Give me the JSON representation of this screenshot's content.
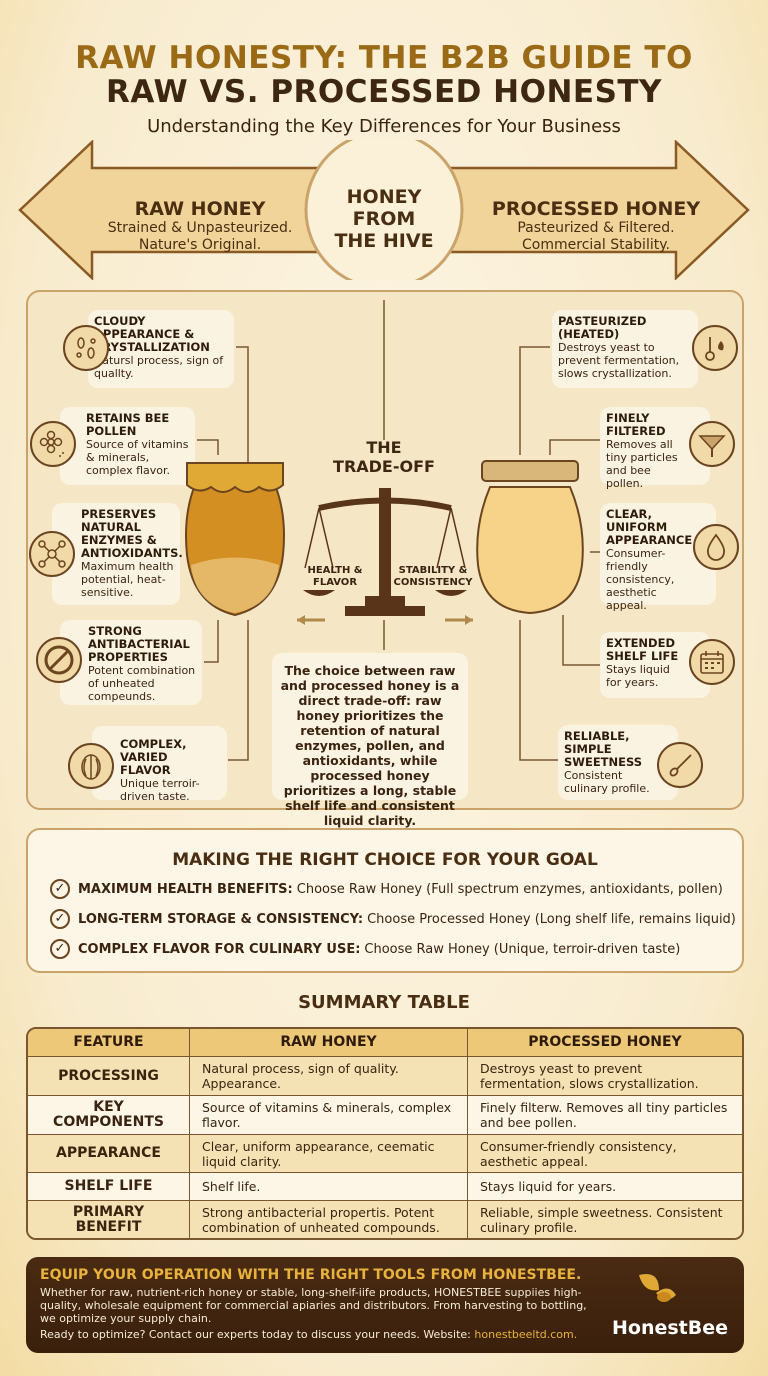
{
  "header": {
    "title_line1": "RAW HONESTY: THE B2B GUIDE TO",
    "title_line2": "RAW VS. PROCESSED HONESTY",
    "subtitle": "Understanding the Key Differences for Your Business"
  },
  "banner": {
    "raw": {
      "title": "RAW HONEY",
      "line1": "Strained & Unpasteurized.",
      "line2": "Nature's Original."
    },
    "center": {
      "line1": "HONEY",
      "line2": "FROM",
      "line3": "THE HIVE"
    },
    "processed": {
      "title": "PROCESSED HONEY",
      "line1": "Pasteurized & Filtered.",
      "line2": "Commercial Stability."
    }
  },
  "raw_features": [
    {
      "icon": "crystals-icon",
      "title": "CLOUDY APPEARANCE & CRYSTALLIZATION",
      "desc": "Natursl process, sign of quallty."
    },
    {
      "icon": "flower-pollen-icon",
      "title": "RETAINS BEE POLLEN",
      "desc": "Source of vitamins & minerals, complex flavor."
    },
    {
      "icon": "molecule-icon",
      "title": "PRESERVES NATURAL ENZYMES & ANTIOXIDANTS.",
      "desc": "Maximum health potential, heat-sensitive."
    },
    {
      "icon": "no-bacteria-icon",
      "title": "STRONG ANTIBACTERIAL PROPERTIES",
      "desc": "Potent combination of unheated compeunds."
    },
    {
      "icon": "cocoa-bean-icon",
      "title": "COMPLEX, VARIED FLAVOR",
      "desc": "Unique terroir-driven taste."
    }
  ],
  "processed_features": [
    {
      "icon": "thermometer-flame-icon",
      "title": "PASTEURIZED (HEATED)",
      "desc": "Destroys yeast to prevent fermentation, slows crystallization."
    },
    {
      "icon": "strainer-icon",
      "title": "FINELY FILTERED",
      "desc": "Removes all tiny particles and bee pollen."
    },
    {
      "icon": "droplet-icon",
      "title": "CLEAR, UNIFORM APPEARANCE",
      "desc": "Consumer-friendly consistency, aesthetic appeal."
    },
    {
      "icon": "calendar-icon",
      "title": "EXTENDED SHELF LIFE",
      "desc": "Stays liquid for years."
    },
    {
      "icon": "spoon-icon",
      "title": "RELIABLE, SIMPLE SWEETNESS",
      "desc": "Consistent culinary profile."
    }
  ],
  "tradeoff": {
    "title_line1": "THE",
    "title_line2": "TRADE-OFF",
    "left_pan": "HEALTH & FLAVOR",
    "right_pan": "STABILITY & CONSISTENCY",
    "quote": "The choice between raw and processed honey is a direct trade-off: raw honey prioritizes the retention of natural enzymes, pollen, and antioxidants, while processed honey prioritizes a long, stable shelf life and consistent liquid clarity."
  },
  "choice": {
    "title": "MAKING THE RIGHT CHOICE FOR YOUR GOAL",
    "items": [
      {
        "label": "MAXIMUM HEALTH BENEFITS:",
        "text": "Choose Raw Honey (Full spectrum enzymes, antioxidants, pollen)"
      },
      {
        "label": "LONG-TERM STORAGE & CONSISTENCY:",
        "text": "Choose Processed Honey (Long shelf life, remains liquid)"
      },
      {
        "label": "COMPLEX FLAVOR FOR CULINARY USE:",
        "text": "Choose Raw Honey (Unique, terroir-driven taste)"
      }
    ]
  },
  "summary": {
    "title": "SUMMARY TABLE",
    "headers": [
      "FEATURE",
      "RAW HONEY",
      "PROCESSED HONEY"
    ],
    "rows": [
      [
        "PROCESSING",
        "Natural process, sign of quality. Appearance.",
        "Destroys yeast to prevent fermentation, slows crystallization."
      ],
      [
        "KEY COMPONENTS",
        "Source of vitamins & minerals, complex flavor.",
        "Finely filterw. Removes all tiny particles and bee pollen."
      ],
      [
        "APPEARANCE",
        "Clear, uniform appearance, ceematic liquid clarity.",
        "Consumer-friendly consistency, aesthetic appeal."
      ],
      [
        "SHELF LIFE",
        "Shelf life.",
        "Stays liquid for years."
      ],
      [
        "PRIMARY BENEFIT",
        "Strong antibacterial propertis. Potent combination of unheated compounds.",
        "Reliable, simple sweetness. Consistent culinary profile."
      ]
    ]
  },
  "footer": {
    "headline": "EQUIP YOUR OPERATION WITH THE RIGHT TOOLS FROM HONESTBEE.",
    "body": "Whether for raw, nutrient-rich honey or stable, long-shelf-iife products, HONESTBEE suppiies high-quality, wholesale equipment for commercial apiaries and distributors. From harvesting to bottling, we optimize your supply chain.",
    "cta": "Ready to optimize? Contact our experts today to discuss your needs. Website:",
    "website": "honestbeeltd.com.",
    "brand": "HonestBee"
  },
  "colors": {
    "gold": "#9a6a16",
    "brown": "#3e2712",
    "accent": "#e0a935",
    "panel": "#f5e6c6"
  }
}
